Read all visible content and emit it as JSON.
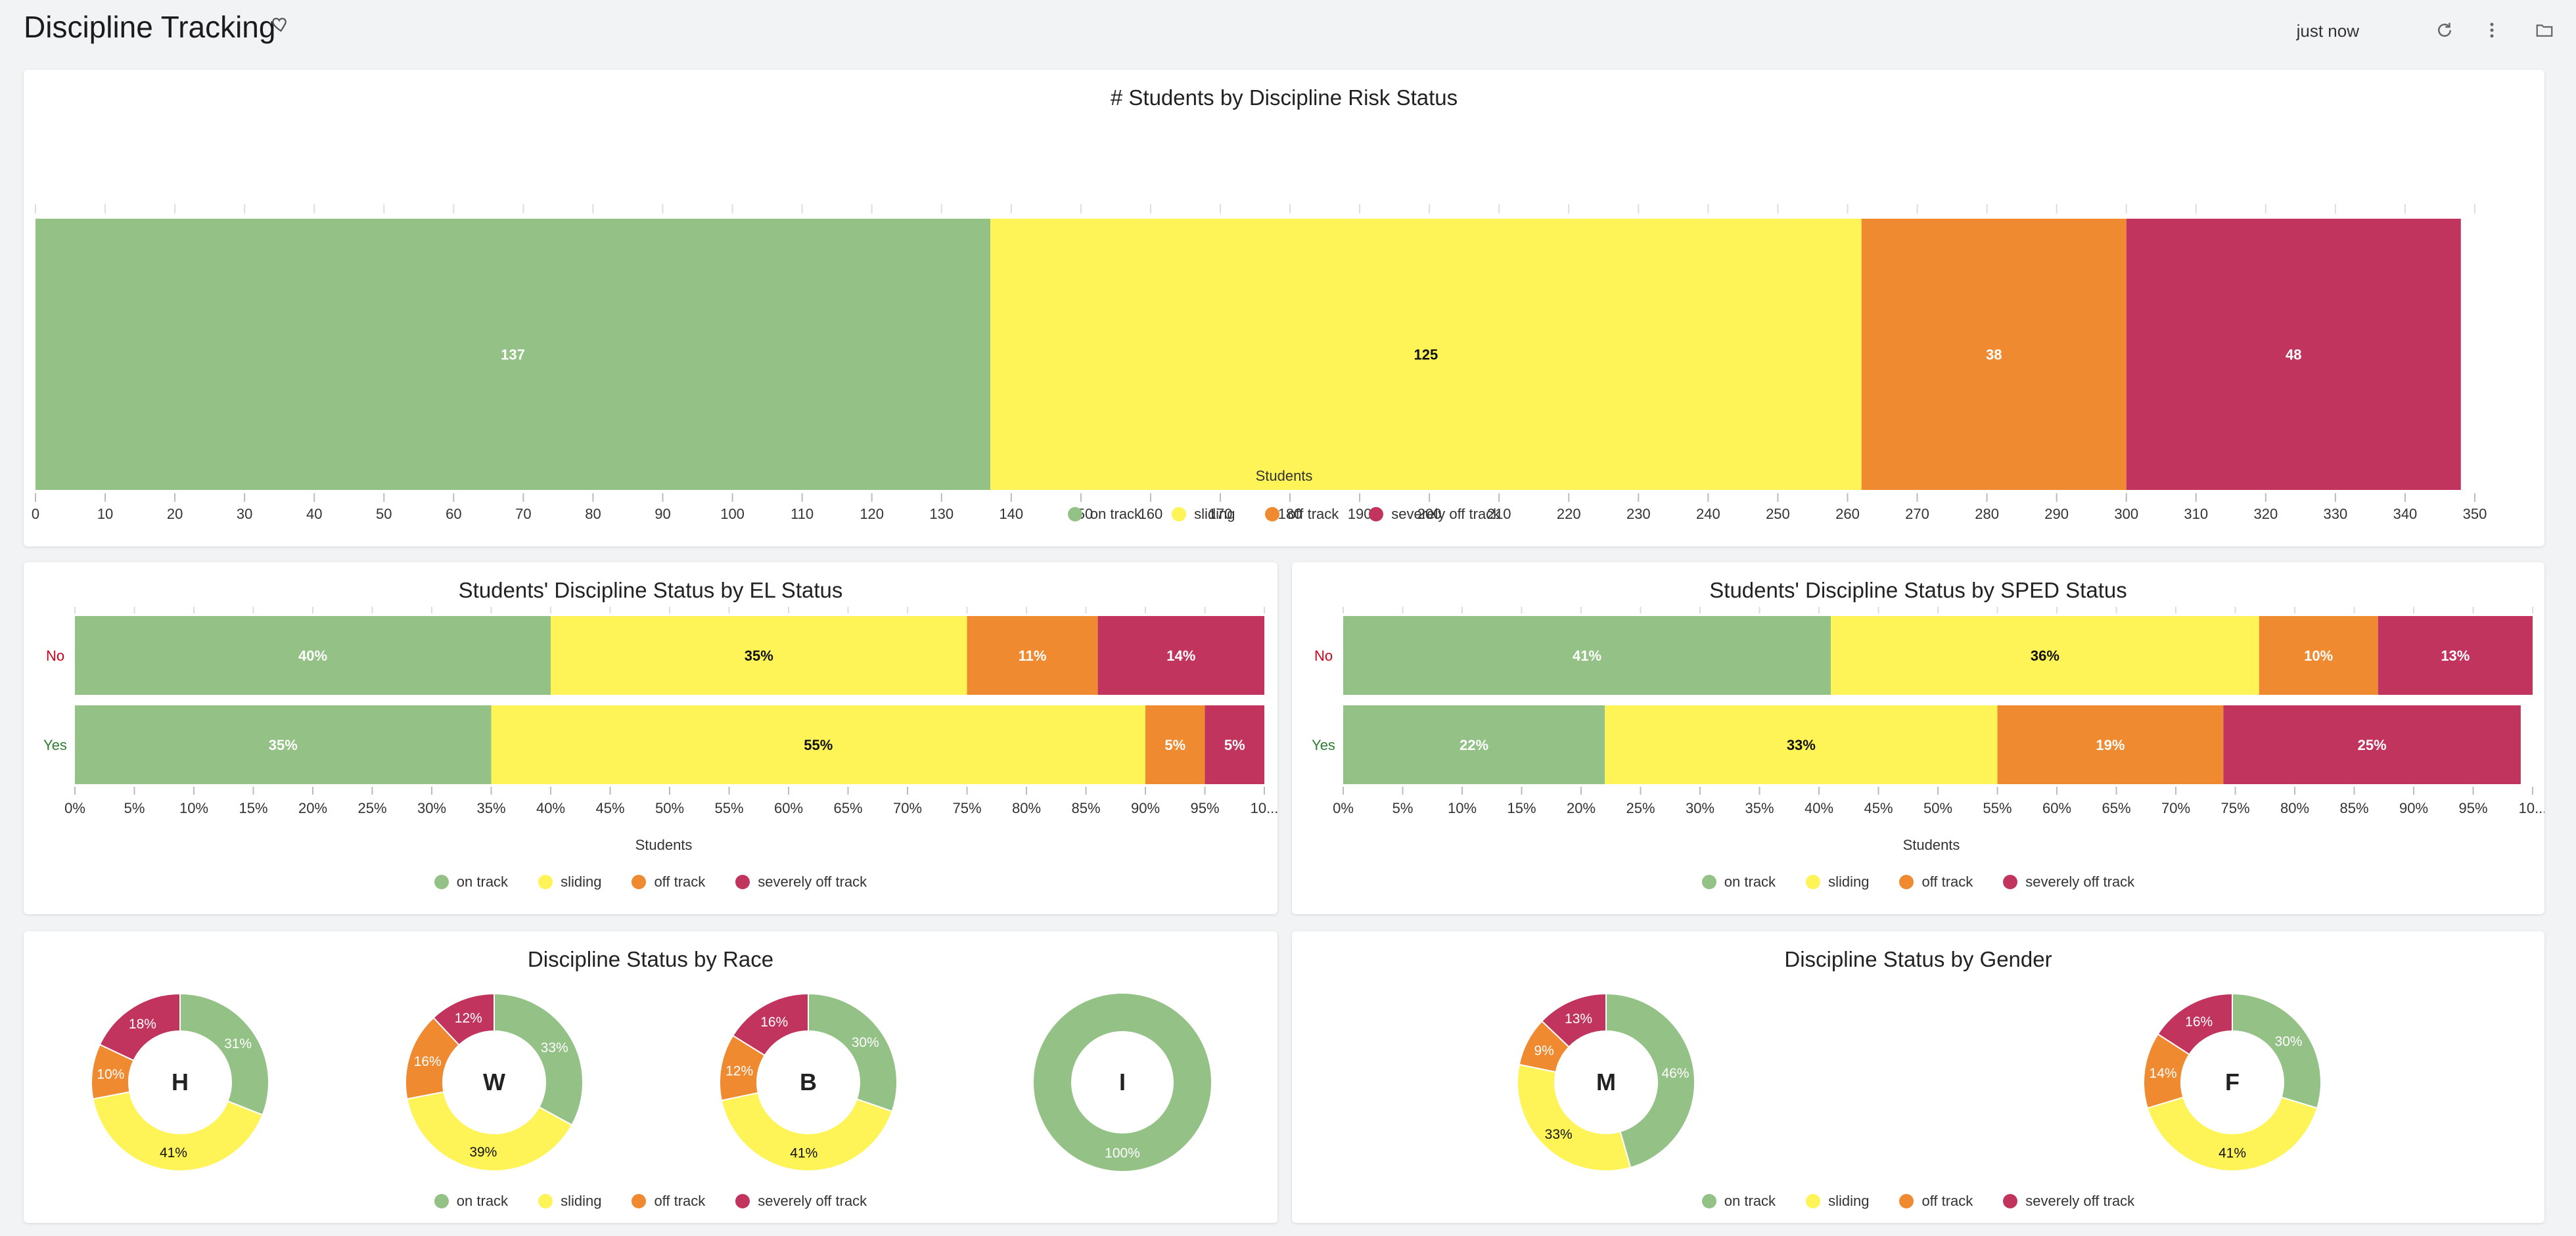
{
  "header": {
    "title": "Discipline Tracking",
    "updated": "just now"
  },
  "colors": {
    "on_track": "#93c186",
    "sliding": "#fff457",
    "off_track": "#ef8a31",
    "severely_off_track": "#c0345e"
  },
  "legend": [
    {
      "label": "on track",
      "color": "#93c186"
    },
    {
      "label": "sliding",
      "color": "#fff457"
    },
    {
      "label": "off track",
      "color": "#ef8a31"
    },
    {
      "label": "severely off track",
      "color": "#c0345e"
    }
  ],
  "panels": {
    "risk": {
      "title": "# Students by Discipline Risk Status",
      "xlabel": "Students"
    },
    "el": {
      "title": "Students' Discipline Status by EL Status",
      "xlabel": "Students"
    },
    "sped": {
      "title": "Students' Discipline Status by SPED Status",
      "xlabel": "Students"
    },
    "race": {
      "title": "Discipline Status by Race"
    },
    "gender": {
      "title": "Discipline Status by Gender"
    }
  },
  "chart_data": [
    {
      "type": "bar",
      "orientation": "horizontal-stacked",
      "title": "# Students by Discipline Risk Status",
      "xlabel": "Students",
      "xlim": [
        0,
        350
      ],
      "xticks": [
        "0",
        "10",
        "20",
        "30",
        "40",
        "50",
        "60",
        "70",
        "80",
        "90",
        "100",
        "110",
        "120",
        "130",
        "140",
        "150",
        "160",
        "170",
        "180",
        "190",
        "200",
        "210",
        "220",
        "230",
        "240",
        "250",
        "260",
        "270",
        "280",
        "290",
        "300",
        "310",
        "320",
        "330",
        "340",
        "350"
      ],
      "series": [
        {
          "name": "on track",
          "values": [
            137
          ]
        },
        {
          "name": "sliding",
          "values": [
            125
          ]
        },
        {
          "name": "off track",
          "values": [
            38
          ]
        },
        {
          "name": "severely off track",
          "values": [
            48
          ]
        }
      ],
      "data_labels": [
        "137",
        "125",
        "38",
        "48"
      ],
      "legend": "bottom-center"
    },
    {
      "type": "bar",
      "orientation": "horizontal-stacked-100",
      "title": "Students' Discipline Status by EL Status",
      "xlabel": "Students",
      "categories": [
        "No",
        "Yes"
      ],
      "xticks": [
        "0%",
        "5%",
        "10%",
        "15%",
        "20%",
        "25%",
        "30%",
        "35%",
        "40%",
        "45%",
        "50%",
        "55%",
        "60%",
        "65%",
        "70%",
        "75%",
        "80%",
        "85%",
        "90%",
        "95%",
        "10..."
      ],
      "series": [
        {
          "name": "on track",
          "values": [
            40,
            35
          ],
          "labels": [
            "40%",
            "35%"
          ]
        },
        {
          "name": "sliding",
          "values": [
            35,
            55
          ],
          "labels": [
            "35%",
            "55%"
          ]
        },
        {
          "name": "off track",
          "values": [
            11,
            5
          ],
          "labels": [
            "11%",
            "5%"
          ]
        },
        {
          "name": "severely off track",
          "values": [
            14,
            5
          ],
          "labels": [
            "14%",
            "5%"
          ]
        }
      ],
      "legend": "bottom-center"
    },
    {
      "type": "bar",
      "orientation": "horizontal-stacked-100",
      "title": "Students' Discipline Status by SPED Status",
      "xlabel": "Students",
      "categories": [
        "No",
        "Yes"
      ],
      "xticks": [
        "0%",
        "5%",
        "10%",
        "15%",
        "20%",
        "25%",
        "30%",
        "35%",
        "40%",
        "45%",
        "50%",
        "55%",
        "60%",
        "65%",
        "70%",
        "75%",
        "80%",
        "85%",
        "90%",
        "95%",
        "10..."
      ],
      "series": [
        {
          "name": "on track",
          "values": [
            41,
            22
          ],
          "labels": [
            "41%",
            "22%"
          ]
        },
        {
          "name": "sliding",
          "values": [
            36,
            33
          ],
          "labels": [
            "36%",
            "33%"
          ]
        },
        {
          "name": "off track",
          "values": [
            10,
            19
          ],
          "labels": [
            "10%",
            "19%"
          ]
        },
        {
          "name": "severely off track",
          "values": [
            13,
            25
          ],
          "labels": [
            "13%",
            "25%"
          ]
        }
      ],
      "legend": "bottom-center"
    },
    {
      "type": "pie",
      "variant": "donut",
      "title": "Discipline Status by Race",
      "pies": [
        {
          "center": "H",
          "values": [
            31,
            41,
            10,
            18
          ],
          "labels": [
            "31%",
            "41%",
            "10%",
            "18%"
          ]
        },
        {
          "center": "W",
          "values": [
            33,
            39,
            16,
            12
          ],
          "labels": [
            "33%",
            "39%",
            "16%",
            "12%"
          ]
        },
        {
          "center": "B",
          "values": [
            30,
            41,
            12,
            16
          ],
          "labels": [
            "30%",
            "41%",
            "12%",
            "16%"
          ]
        },
        {
          "center": "I",
          "values": [
            100,
            0,
            0,
            0
          ],
          "labels": [
            "100%",
            "",
            "",
            ""
          ]
        }
      ],
      "series_order": [
        "on track",
        "sliding",
        "off track",
        "severely off track"
      ],
      "legend": "bottom-center"
    },
    {
      "type": "pie",
      "variant": "donut",
      "title": "Discipline Status by Gender",
      "pies": [
        {
          "center": "M",
          "values": [
            46,
            33,
            9,
            13
          ],
          "labels": [
            "46%",
            "33%",
            "9%",
            "13%"
          ]
        },
        {
          "center": "F",
          "values": [
            30,
            41,
            14,
            16
          ],
          "labels": [
            "30%",
            "41%",
            "14%",
            "16%"
          ]
        }
      ],
      "series_order": [
        "on track",
        "sliding",
        "off track",
        "severely off track"
      ],
      "legend": "bottom-center"
    }
  ]
}
